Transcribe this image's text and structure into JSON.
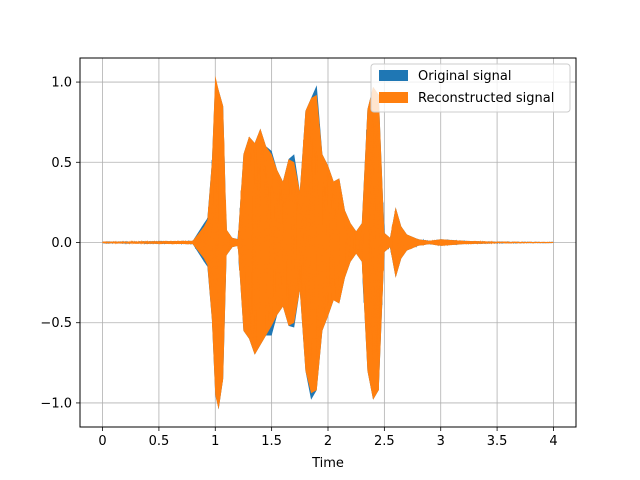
{
  "chart_data": {
    "type": "area",
    "title": "",
    "xlabel": "Time",
    "ylabel": "",
    "xlim": [
      -0.2,
      4.2
    ],
    "ylim": [
      -1.15,
      1.15
    ],
    "xticks": [
      0,
      0.5,
      1,
      1.5,
      2,
      2.5,
      3,
      3.5,
      4
    ],
    "xtick_labels": [
      "0",
      "0.5",
      "1",
      "1.5",
      "2",
      "2.5",
      "3",
      "3.5",
      "4"
    ],
    "yticks": [
      -1.0,
      -0.5,
      0.0,
      0.5,
      1.0
    ],
    "ytick_labels": [
      "−1.0",
      "−0.5",
      "0.0",
      "0.5",
      "1.0"
    ],
    "grid": true,
    "legend_position": "top-right",
    "envelope_x": [
      0,
      0.8,
      0.9,
      0.93,
      0.97,
      1.0,
      1.03,
      1.07,
      1.1,
      1.15,
      1.2,
      1.25,
      1.3,
      1.35,
      1.4,
      1.45,
      1.5,
      1.55,
      1.6,
      1.65,
      1.7,
      1.75,
      1.8,
      1.85,
      1.9,
      1.95,
      2.0,
      2.05,
      2.1,
      2.15,
      2.2,
      2.25,
      2.3,
      2.35,
      2.4,
      2.45,
      2.5,
      2.55,
      2.6,
      2.65,
      2.7,
      2.8,
      2.9,
      3.0,
      3.2,
      3.4,
      3.5,
      4.0
    ],
    "series": [
      {
        "name": "Original signal",
        "color": "#1f77b4",
        "upper": [
          0.004,
          0.01,
          0.12,
          0.15,
          0.5,
          1.02,
          0.95,
          0.85,
          0.08,
          0.03,
          0.02,
          0.55,
          0.66,
          0.62,
          0.71,
          0.6,
          0.57,
          0.45,
          0.38,
          0.52,
          0.55,
          0.32,
          0.82,
          0.9,
          0.98,
          0.55,
          0.48,
          0.38,
          0.4,
          0.2,
          0.12,
          0.07,
          0.12,
          0.83,
          0.97,
          0.92,
          0.06,
          0.03,
          0.22,
          0.1,
          0.05,
          0.02,
          0.01,
          0.02,
          0.01,
          0.006,
          0.004,
          0.002
        ],
        "lower": [
          -0.004,
          -0.01,
          -0.12,
          -0.15,
          -0.48,
          -0.95,
          -1.04,
          -0.85,
          -0.08,
          -0.03,
          -0.02,
          -0.55,
          -0.6,
          -0.7,
          -0.64,
          -0.58,
          -0.58,
          -0.45,
          -0.4,
          -0.52,
          -0.53,
          -0.3,
          -0.8,
          -0.98,
          -0.92,
          -0.55,
          -0.46,
          -0.36,
          -0.38,
          -0.22,
          -0.12,
          -0.07,
          -0.12,
          -0.8,
          -0.98,
          -0.92,
          -0.06,
          -0.03,
          -0.22,
          -0.1,
          -0.05,
          -0.02,
          -0.01,
          -0.02,
          -0.01,
          -0.006,
          -0.004,
          -0.002
        ]
      },
      {
        "name": "Reconstructed signal",
        "color": "#ff7f0e",
        "upper": [
          0.004,
          0.01,
          0.1,
          0.14,
          0.5,
          1.04,
          0.95,
          0.85,
          0.08,
          0.03,
          0.02,
          0.55,
          0.66,
          0.62,
          0.71,
          0.6,
          0.55,
          0.45,
          0.38,
          0.52,
          0.5,
          0.32,
          0.82,
          0.9,
          0.92,
          0.55,
          0.48,
          0.38,
          0.4,
          0.2,
          0.12,
          0.07,
          0.12,
          0.83,
          0.97,
          0.92,
          0.06,
          0.03,
          0.22,
          0.1,
          0.05,
          0.02,
          0.01,
          0.02,
          0.01,
          0.006,
          0.004,
          0.002
        ],
        "lower": [
          -0.004,
          -0.01,
          -0.1,
          -0.14,
          -0.48,
          -0.95,
          -1.04,
          -0.85,
          -0.08,
          -0.03,
          -0.02,
          -0.55,
          -0.6,
          -0.7,
          -0.64,
          -0.58,
          -0.52,
          -0.45,
          -0.4,
          -0.52,
          -0.5,
          -0.3,
          -0.8,
          -0.94,
          -0.92,
          -0.55,
          -0.46,
          -0.36,
          -0.38,
          -0.22,
          -0.12,
          -0.07,
          -0.12,
          -0.8,
          -0.98,
          -0.92,
          -0.06,
          -0.03,
          -0.22,
          -0.1,
          -0.05,
          -0.02,
          -0.01,
          -0.02,
          -0.01,
          -0.006,
          -0.004,
          -0.002
        ]
      }
    ]
  }
}
